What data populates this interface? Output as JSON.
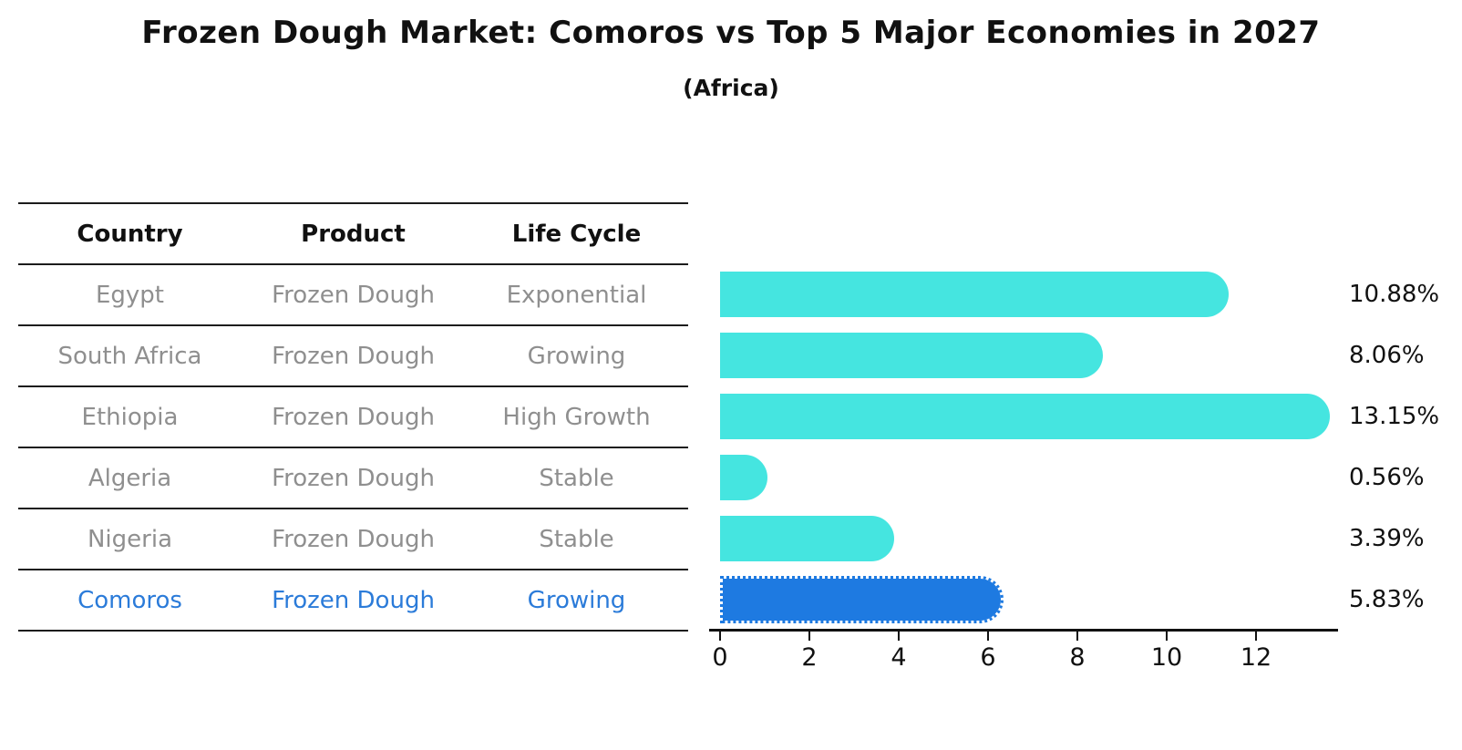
{
  "chart_data": {
    "type": "bar",
    "orientation": "horizontal",
    "title": "Frozen Dough Market: Comoros vs Top 5 Major Economies in 2027",
    "subtitle": "(Africa)",
    "categories": [
      "Egypt",
      "South Africa",
      "Ethiopia",
      "Algeria",
      "Nigeria",
      "Comoros"
    ],
    "values": [
      10.88,
      8.06,
      13.15,
      0.56,
      3.39,
      5.83
    ],
    "value_labels": [
      "10.88%",
      "8.06%",
      "13.15%",
      "0.56%",
      "3.39%",
      "5.83%"
    ],
    "highlight_index": 5,
    "xlim": [
      0,
      13.8
    ],
    "xticks": [
      0,
      2,
      4,
      6,
      8,
      10,
      12
    ],
    "xtick_labels": [
      "0",
      "2",
      "4",
      "6",
      "8",
      "10",
      "12"
    ],
    "grid": false,
    "legend": "none",
    "bar_color": "#45e5e0",
    "highlight_color": "#1e7ae1",
    "highlight_text_color": "#2b7bd9",
    "text_color": "#8f8f8f"
  },
  "table": {
    "headers": [
      "Country",
      "Product",
      "Life Cycle"
    ],
    "rows": [
      {
        "country": "Egypt",
        "product": "Frozen Dough",
        "life_cycle": "Exponential"
      },
      {
        "country": "South Africa",
        "product": "Frozen Dough",
        "life_cycle": "Growing"
      },
      {
        "country": "Ethiopia",
        "product": "Frozen Dough",
        "life_cycle": "High Growth"
      },
      {
        "country": "Algeria",
        "product": "Frozen Dough",
        "life_cycle": "Stable"
      },
      {
        "country": "Nigeria",
        "product": "Frozen Dough",
        "life_cycle": "Stable"
      },
      {
        "country": "Comoros",
        "product": "Frozen Dough",
        "life_cycle": "Growing"
      }
    ]
  }
}
